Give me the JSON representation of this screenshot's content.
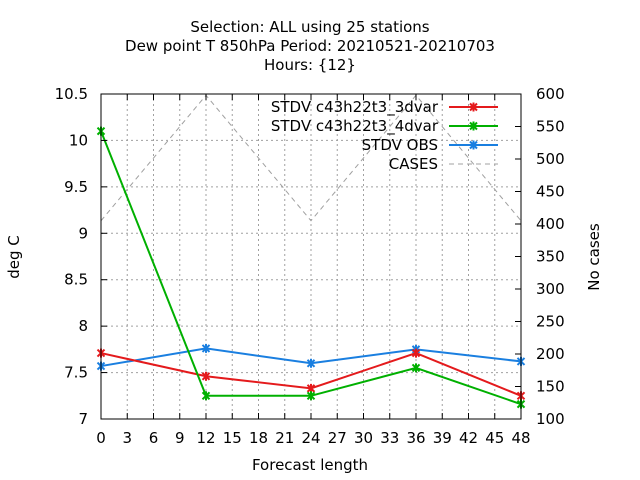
{
  "chart_data": {
    "type": "line",
    "title_lines": [
      "Selection: ALL using    25 stations",
      "Dew point T 850hPa   Period: 20210521-20210703",
      "Hours: {12}"
    ],
    "xlabel": "Forecast length",
    "ylabel": "deg C",
    "y2label": "No cases",
    "xlim": [
      0,
      48
    ],
    "ylim": [
      7,
      10.5
    ],
    "y2lim": [
      100,
      600
    ],
    "xticks": [
      "0",
      "3",
      "6",
      "9",
      "12",
      "15",
      "18",
      "21",
      "24",
      "27",
      "30",
      "33",
      "36",
      "39",
      "42",
      "45",
      "48"
    ],
    "yticks": [
      "7",
      "7.5",
      "8",
      "8.5",
      "9",
      "9.5",
      "10",
      "10.5"
    ],
    "y2ticks": [
      "100",
      "150",
      "200",
      "250",
      "300",
      "350",
      "400",
      "450",
      "500",
      "550",
      "600"
    ],
    "grid": true,
    "legend_position": "top-right",
    "x": [
      0,
      12,
      24,
      36,
      48
    ],
    "series": [
      {
        "name": "STDV c43h22t3_3dvar",
        "axis": "y",
        "color": "#e41a1c",
        "marker": "cross",
        "values": [
          7.71,
          7.46,
          7.33,
          7.71,
          7.25
        ]
      },
      {
        "name": "STDV c43h22t3_4dvar",
        "axis": "y",
        "color": "#00b000",
        "marker": "cross",
        "values": [
          10.1,
          7.25,
          7.25,
          7.55,
          7.16
        ]
      },
      {
        "name": "STDV OBS",
        "axis": "y",
        "color": "#1a7fe0",
        "marker": "cross",
        "values": [
          7.57,
          7.76,
          7.6,
          7.75,
          7.62
        ]
      },
      {
        "name": "CASES",
        "axis": "y2",
        "color": "#a0a0a0",
        "dashed": true,
        "marker": "none",
        "values": [
          405,
          598,
          405,
          598,
          405
        ]
      }
    ]
  }
}
